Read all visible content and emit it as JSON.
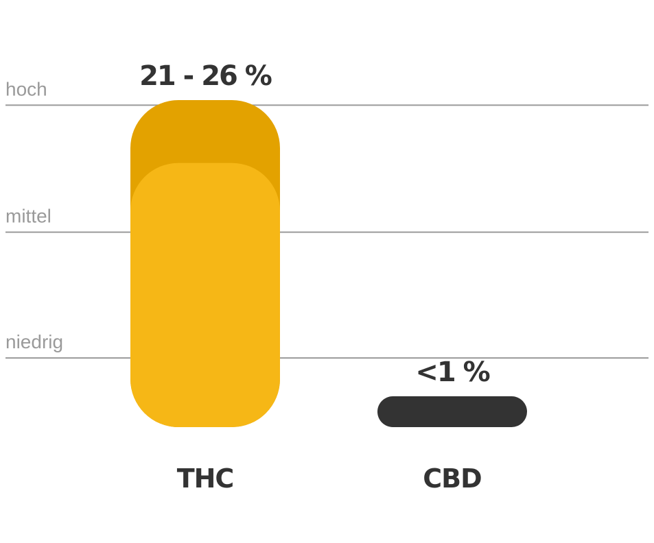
{
  "chart_data": {
    "type": "range-bar",
    "categories": [
      "THC",
      "CBD"
    ],
    "low": [
      21,
      null
    ],
    "high": [
      26,
      1
    ],
    "value_labels": [
      "21 - 26 %",
      "<1 %"
    ],
    "colors": [
      "#f6b716",
      "#333333"
    ],
    "cap_color": "#e3a200",
    "ylim": [
      0,
      26
    ],
    "yticks": [
      {
        "value": 25.6,
        "label": "hoch"
      },
      {
        "value": 15.5,
        "label": "mittel"
      },
      {
        "value": 5.5,
        "label": "niedrig"
      }
    ],
    "grid": true
  }
}
